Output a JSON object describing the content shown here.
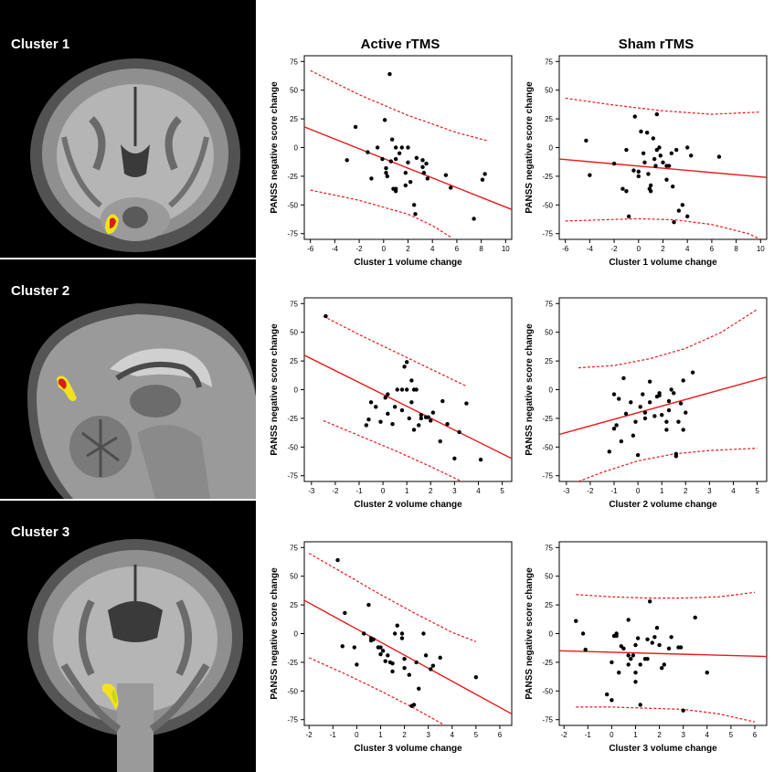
{
  "columns": {
    "active_title": "Active rTMS",
    "sham_title": "Sham rTMS"
  },
  "clusters": [
    {
      "label": "Cluster 1",
      "view": "coronal"
    },
    {
      "label": "Cluster 2",
      "view": "sagittal"
    },
    {
      "label": "Cluster 3",
      "view": "coronal"
    }
  ],
  "colors": {
    "points": "#000000",
    "fit_line": "#e8191b",
    "ci_line": "#e8191b",
    "highlight_red": "#d81e14",
    "highlight_yellow": "#f2e21e"
  },
  "chart_data": [
    {
      "id": "active-cluster1",
      "type": "scatter",
      "title": "",
      "xlabel": "Cluster 1 volume change",
      "ylabel": "PANSS negative score change",
      "xlim": [
        -6.5,
        10.5
      ],
      "ylim": [
        -80,
        80
      ],
      "xticks": [
        -6,
        -4,
        -2,
        0,
        2,
        4,
        6,
        8,
        10
      ],
      "yticks": [
        75,
        50,
        25,
        0,
        -25,
        -50,
        -75
      ],
      "fit": [
        [
          -6.5,
          18
        ],
        [
          10.5,
          -54
        ]
      ],
      "ci_upper": [
        [
          -6,
          67
        ],
        [
          -2,
          46
        ],
        [
          2,
          28
        ],
        [
          6,
          13
        ],
        [
          8.5,
          6
        ]
      ],
      "ci_lower": [
        [
          -6,
          -37
        ],
        [
          -2,
          -46
        ],
        [
          2,
          -58
        ],
        [
          4,
          -68
        ],
        [
          5.5,
          -78
        ]
      ],
      "points": [
        [
          0.5,
          64
        ],
        [
          -2.3,
          18
        ],
        [
          0.1,
          24
        ],
        [
          -3,
          -11
        ],
        [
          -1.3,
          -4
        ],
        [
          -1,
          -27
        ],
        [
          -0.5,
          0
        ],
        [
          -0.1,
          -10
        ],
        [
          0.2,
          -18
        ],
        [
          0.2,
          -22
        ],
        [
          0.3,
          -25
        ],
        [
          0.6,
          -12
        ],
        [
          0.8,
          -36
        ],
        [
          1,
          -38
        ],
        [
          1,
          -36
        ],
        [
          0.7,
          7
        ],
        [
          1,
          0
        ],
        [
          1,
          -10
        ],
        [
          1.3,
          -5
        ],
        [
          1.5,
          0
        ],
        [
          1.8,
          -22
        ],
        [
          1.8,
          -33
        ],
        [
          2,
          -13
        ],
        [
          2,
          0
        ],
        [
          2.2,
          -30
        ],
        [
          2.5,
          -50
        ],
        [
          2.6,
          -58
        ],
        [
          2.7,
          -9
        ],
        [
          3.2,
          -11
        ],
        [
          3.2,
          -17
        ],
        [
          3.3,
          -22
        ],
        [
          3.5,
          -14
        ],
        [
          3.6,
          -27
        ],
        [
          5.1,
          -24
        ],
        [
          5.5,
          -35
        ],
        [
          7.4,
          -62
        ],
        [
          8.1,
          -28
        ],
        [
          8.3,
          -23
        ]
      ]
    },
    {
      "id": "sham-cluster1",
      "type": "scatter",
      "title": "",
      "xlabel": "Cluster 1 volume change",
      "ylabel": "PANSS negative score change",
      "xlim": [
        -6.5,
        10.5
      ],
      "ylim": [
        -80,
        80
      ],
      "xticks": [
        -6,
        -4,
        -2,
        0,
        2,
        4,
        6,
        8,
        10
      ],
      "yticks": [
        75,
        50,
        25,
        0,
        -25,
        -50,
        -75
      ],
      "fit": [
        [
          -6.5,
          -10
        ],
        [
          10.5,
          -26
        ]
      ],
      "ci_upper": [
        [
          -6,
          43
        ],
        [
          -2,
          37
        ],
        [
          2,
          32
        ],
        [
          6,
          29
        ],
        [
          10,
          31
        ]
      ],
      "ci_lower": [
        [
          -6,
          -64
        ],
        [
          -3,
          -63
        ],
        [
          0,
          -62
        ],
        [
          3,
          -63
        ],
        [
          6,
          -67
        ],
        [
          9,
          -75
        ],
        [
          10,
          -80
        ]
      ],
      "points": [
        [
          -4.3,
          6
        ],
        [
          -4,
          -24
        ],
        [
          -2,
          -14
        ],
        [
          -1.3,
          -36
        ],
        [
          -1,
          -38
        ],
        [
          -1,
          -2
        ],
        [
          -0.8,
          -60
        ],
        [
          -0.3,
          27
        ],
        [
          -0.4,
          -20
        ],
        [
          0,
          -25
        ],
        [
          0,
          -21
        ],
        [
          0.2,
          14
        ],
        [
          0.4,
          -5
        ],
        [
          0.5,
          -13
        ],
        [
          0.7,
          13
        ],
        [
          0.8,
          -23
        ],
        [
          0.9,
          -36
        ],
        [
          1,
          -38
        ],
        [
          1,
          -33
        ],
        [
          1.2,
          8
        ],
        [
          1.3,
          -10
        ],
        [
          1.4,
          -16
        ],
        [
          1.5,
          29
        ],
        [
          1.5,
          -2
        ],
        [
          1.7,
          0
        ],
        [
          1.8,
          -7
        ],
        [
          2,
          -13
        ],
        [
          2.3,
          -16
        ],
        [
          2.3,
          -28
        ],
        [
          2.5,
          -16
        ],
        [
          2.7,
          -5
        ],
        [
          2.8,
          -34
        ],
        [
          2.9,
          -65
        ],
        [
          3.1,
          -2
        ],
        [
          3.3,
          -55
        ],
        [
          3.6,
          -50
        ],
        [
          4,
          -60
        ],
        [
          4,
          0
        ],
        [
          4.3,
          -7
        ],
        [
          6.6,
          -8
        ]
      ]
    },
    {
      "id": "active-cluster2",
      "type": "scatter",
      "title": "",
      "xlabel": "Cluster 2 volume change",
      "ylabel": "PANSS negative score change",
      "xlim": [
        -3.3,
        5.4
      ],
      "ylim": [
        -80,
        80
      ],
      "xticks": [
        -3,
        -2,
        -1,
        0,
        1,
        2,
        3,
        4,
        5
      ],
      "yticks": [
        75,
        50,
        25,
        0,
        -25,
        -50,
        -75
      ],
      "fit": [
        [
          -3.3,
          30
        ],
        [
          5.4,
          -60
        ]
      ],
      "ci_upper": [
        [
          -2.5,
          64
        ],
        [
          -1,
          48
        ],
        [
          0.5,
          33
        ],
        [
          2,
          18
        ],
        [
          3.5,
          3
        ]
      ],
      "ci_lower": [
        [
          -2.5,
          -27
        ],
        [
          -1,
          -40
        ],
        [
          0.5,
          -53
        ],
        [
          2,
          -67
        ],
        [
          3.3,
          -80
        ]
      ],
      "points": [
        [
          -2.4,
          64
        ],
        [
          -0.7,
          -31
        ],
        [
          -0.6,
          -26
        ],
        [
          -0.5,
          -11
        ],
        [
          -0.3,
          -15
        ],
        [
          -0.1,
          -28
        ],
        [
          0.1,
          -7
        ],
        [
          0.2,
          -4
        ],
        [
          0.2,
          -21
        ],
        [
          0.4,
          -30
        ],
        [
          0.5,
          -15
        ],
        [
          0.6,
          0
        ],
        [
          0.8,
          0
        ],
        [
          0.8,
          -18
        ],
        [
          0.9,
          20
        ],
        [
          1,
          24
        ],
        [
          1,
          0
        ],
        [
          1.1,
          -25
        ],
        [
          1.2,
          -11
        ],
        [
          1.2,
          8
        ],
        [
          1.3,
          0
        ],
        [
          1.3,
          -35
        ],
        [
          1.4,
          0
        ],
        [
          1.5,
          -31
        ],
        [
          1.6,
          -22
        ],
        [
          1.6,
          -25
        ],
        [
          1.8,
          -24
        ],
        [
          1.9,
          -24
        ],
        [
          2,
          -27
        ],
        [
          2.1,
          -20
        ],
        [
          2.4,
          -45
        ],
        [
          2.5,
          -10
        ],
        [
          2.7,
          -30
        ],
        [
          3,
          -60
        ],
        [
          3.2,
          -37
        ],
        [
          3.5,
          -12
        ],
        [
          4.1,
          -61
        ]
      ]
    },
    {
      "id": "sham-cluster2",
      "type": "scatter",
      "title": "",
      "xlabel": "Cluster 2 volume change",
      "ylabel": "PANSS negative score change",
      "xlim": [
        -3.3,
        5.4
      ],
      "ylim": [
        -80,
        80
      ],
      "xticks": [
        -3,
        -2,
        -1,
        0,
        1,
        2,
        3,
        4,
        5
      ],
      "yticks": [
        75,
        50,
        25,
        0,
        -25,
        -50,
        -75
      ],
      "fit": [
        [
          -3.3,
          -39
        ],
        [
          5.4,
          11
        ]
      ],
      "ci_upper": [
        [
          -2.5,
          19
        ],
        [
          -1,
          21
        ],
        [
          0.5,
          27
        ],
        [
          2,
          36
        ],
        [
          3.5,
          50
        ],
        [
          5,
          70
        ]
      ],
      "ci_lower": [
        [
          -2.5,
          -80
        ],
        [
          -1.5,
          -72
        ],
        [
          0,
          -62
        ],
        [
          1.5,
          -56
        ],
        [
          3,
          -53
        ],
        [
          5,
          -51
        ]
      ],
      "points": [
        [
          -1.2,
          -54
        ],
        [
          -1,
          -4
        ],
        [
          -1,
          -34
        ],
        [
          -0.9,
          -31
        ],
        [
          -0.8,
          -8
        ],
        [
          -0.7,
          -45
        ],
        [
          -0.6,
          10
        ],
        [
          -0.5,
          -21
        ],
        [
          -0.3,
          -11
        ],
        [
          -0.2,
          -40
        ],
        [
          -0.1,
          -28
        ],
        [
          0,
          -57
        ],
        [
          0.1,
          -15
        ],
        [
          0.2,
          -4
        ],
        [
          0.3,
          -20
        ],
        [
          0.3,
          -25
        ],
        [
          0.5,
          -11
        ],
        [
          0.5,
          7
        ],
        [
          0.7,
          -23
        ],
        [
          0.8,
          -6
        ],
        [
          0.9,
          -5
        ],
        [
          0.9,
          -3
        ],
        [
          1,
          -22
        ],
        [
          1.2,
          -35
        ],
        [
          1.2,
          -28
        ],
        [
          1.3,
          -10
        ],
        [
          1.3,
          -18
        ],
        [
          1.4,
          0
        ],
        [
          1.5,
          -3
        ],
        [
          1.6,
          -58
        ],
        [
          1.6,
          -56
        ],
        [
          1.7,
          -28
        ],
        [
          1.8,
          -12
        ],
        [
          1.9,
          -35
        ],
        [
          2,
          -20
        ],
        [
          2.3,
          15
        ],
        [
          1.9,
          8
        ]
      ]
    },
    {
      "id": "active-cluster3",
      "type": "scatter",
      "title": "",
      "xlabel": "Cluster 3 volume change",
      "ylabel": "PANSS negative score change",
      "xlim": [
        -2.2,
        6.5
      ],
      "ylim": [
        -80,
        80
      ],
      "xticks": [
        -2,
        -1,
        0,
        1,
        2,
        3,
        4,
        5,
        6
      ],
      "yticks": [
        75,
        50,
        25,
        0,
        -25,
        -50,
        -75
      ],
      "fit": [
        [
          -2.2,
          29
        ],
        [
          6.5,
          -70
        ]
      ],
      "ci_upper": [
        [
          -2,
          70
        ],
        [
          -0.5,
          52
        ],
        [
          1,
          34
        ],
        [
          2.5,
          17
        ],
        [
          4,
          1
        ],
        [
          5,
          -7
        ]
      ],
      "ci_lower": [
        [
          -2,
          -21
        ],
        [
          -0.5,
          -35
        ],
        [
          1,
          -50
        ],
        [
          2.5,
          -66
        ],
        [
          3.7,
          -80
        ]
      ],
      "points": [
        [
          -0.8,
          64
        ],
        [
          -0.5,
          18
        ],
        [
          -0.6,
          -11
        ],
        [
          -0.1,
          -12
        ],
        [
          0,
          -27
        ],
        [
          0.3,
          0
        ],
        [
          0.5,
          25
        ],
        [
          0.6,
          -4
        ],
        [
          0.6,
          -6
        ],
        [
          0.7,
          -5
        ],
        [
          0.9,
          -12
        ],
        [
          1,
          -12
        ],
        [
          1,
          -18
        ],
        [
          1.1,
          -15
        ],
        [
          1.2,
          -24
        ],
        [
          1.3,
          -19
        ],
        [
          1.4,
          -25
        ],
        [
          1.5,
          -26
        ],
        [
          1.5,
          -33
        ],
        [
          1.6,
          0
        ],
        [
          1.7,
          7
        ],
        [
          1.9,
          0
        ],
        [
          1.9,
          -4
        ],
        [
          2,
          -22
        ],
        [
          2,
          -30
        ],
        [
          2.2,
          -36
        ],
        [
          2.3,
          -63
        ],
        [
          2.4,
          -62
        ],
        [
          2.5,
          -25
        ],
        [
          2.6,
          -48
        ],
        [
          2.8,
          0
        ],
        [
          2.9,
          -19
        ],
        [
          3.1,
          -31
        ],
        [
          3.2,
          -28
        ],
        [
          3.5,
          -21
        ],
        [
          5,
          -38
        ]
      ]
    },
    {
      "id": "sham-cluster3",
      "type": "scatter",
      "title": "",
      "xlabel": "Cluster 3 volume change",
      "ylabel": "PANSS negative score change",
      "xlim": [
        -2.2,
        6.5
      ],
      "ylim": [
        -80,
        80
      ],
      "xticks": [
        -2,
        -1,
        0,
        1,
        2,
        3,
        4,
        5,
        6
      ],
      "yticks": [
        75,
        50,
        25,
        0,
        -25,
        -50,
        -75
      ],
      "fit": [
        [
          -2.2,
          -15
        ],
        [
          6.5,
          -20
        ]
      ],
      "ci_upper": [
        [
          -1.5,
          34
        ],
        [
          0,
          32
        ],
        [
          1.5,
          31
        ],
        [
          3,
          31
        ],
        [
          4.5,
          32
        ],
        [
          6,
          36
        ]
      ],
      "ci_lower": [
        [
          -1.5,
          -64
        ],
        [
          0,
          -64
        ],
        [
          1.5,
          -65
        ],
        [
          3,
          -66
        ],
        [
          4.5,
          -70
        ],
        [
          6,
          -77
        ]
      ],
      "points": [
        [
          -1.5,
          11
        ],
        [
          -1.2,
          0
        ],
        [
          -1.1,
          -14
        ],
        [
          -0.2,
          -53
        ],
        [
          0,
          -58
        ],
        [
          0,
          -25
        ],
        [
          0.1,
          -2
        ],
        [
          0.2,
          -2
        ],
        [
          0.2,
          0
        ],
        [
          0.3,
          -34
        ],
        [
          0.4,
          -11
        ],
        [
          0.5,
          -13
        ],
        [
          0.7,
          -27
        ],
        [
          0.7,
          -19
        ],
        [
          0.7,
          12
        ],
        [
          0.8,
          -22
        ],
        [
          0.9,
          -19
        ],
        [
          1,
          -34
        ],
        [
          1,
          -42
        ],
        [
          1,
          -10
        ],
        [
          1.1,
          -4
        ],
        [
          1.2,
          -27
        ],
        [
          1.2,
          -62
        ],
        [
          1.4,
          -22
        ],
        [
          1.5,
          -5
        ],
        [
          1.5,
          -22
        ],
        [
          1.6,
          28
        ],
        [
          1.7,
          -8
        ],
        [
          1.8,
          -3
        ],
        [
          1.9,
          5
        ],
        [
          2,
          -10
        ],
        [
          2.1,
          -30
        ],
        [
          2.2,
          -27
        ],
        [
          2.4,
          -13
        ],
        [
          2.5,
          -3
        ],
        [
          2.8,
          -12
        ],
        [
          2.9,
          -12
        ],
        [
          3,
          -67
        ],
        [
          3.5,
          14
        ],
        [
          4,
          -34
        ]
      ]
    }
  ]
}
